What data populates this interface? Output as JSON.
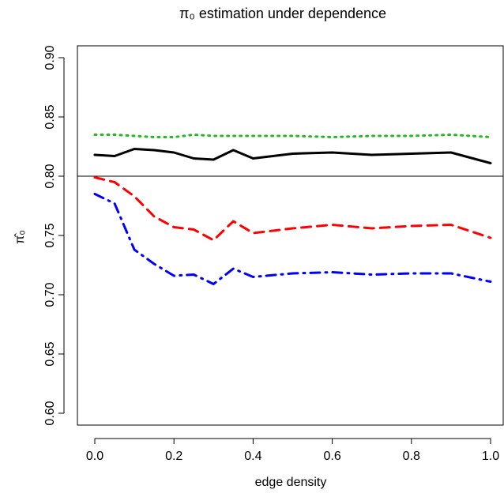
{
  "chart_data": {
    "type": "line",
    "title": "π₀ estimation under dependence",
    "xlabel": "edge density",
    "ylabel": "π̂₀",
    "xlim": [
      0,
      1
    ],
    "ylim": [
      0.59,
      0.91
    ],
    "x_ticks": [
      0.0,
      0.2,
      0.4,
      0.6,
      0.8,
      1.0
    ],
    "x_tick_labels": [
      "0.0",
      "0.2",
      "0.4",
      "0.6",
      "0.8",
      "1.0"
    ],
    "y_ticks": [
      0.6,
      0.65,
      0.7,
      0.75,
      0.8,
      0.85,
      0.9
    ],
    "y_tick_labels": [
      "0.60",
      "0.65",
      "0.70",
      "0.75",
      "0.80",
      "0.85",
      "0.90"
    ],
    "grid": false,
    "reference_line": {
      "y": 0.8,
      "color": "#000000"
    },
    "x": [
      0.0,
      0.05,
      0.1,
      0.15,
      0.2,
      0.25,
      0.3,
      0.35,
      0.4,
      0.5,
      0.6,
      0.7,
      0.8,
      0.9,
      1.0
    ],
    "series": [
      {
        "color": "#000000",
        "style": "solid",
        "values": [
          0.818,
          0.817,
          0.823,
          0.822,
          0.82,
          0.815,
          0.814,
          0.822,
          0.815,
          0.819,
          0.82,
          0.818,
          0.819,
          0.82,
          0.811
        ]
      },
      {
        "color": "#22bb22",
        "style": "dotted",
        "values": [
          0.835,
          0.835,
          0.834,
          0.833,
          0.833,
          0.835,
          0.834,
          0.834,
          0.834,
          0.834,
          0.833,
          0.834,
          0.834,
          0.835,
          0.833
        ]
      },
      {
        "color": "#ff0000",
        "style": "dashed",
        "values": [
          0.799,
          0.795,
          0.783,
          0.766,
          0.757,
          0.755,
          0.746,
          0.762,
          0.752,
          0.756,
          0.759,
          0.756,
          0.758,
          0.759,
          0.748
        ]
      },
      {
        "color": "#0000ff",
        "style": "dashdot",
        "values": [
          0.785,
          0.777,
          0.738,
          0.726,
          0.716,
          0.717,
          0.709,
          0.722,
          0.715,
          0.718,
          0.719,
          0.717,
          0.718,
          0.718,
          0.711
        ]
      }
    ]
  }
}
